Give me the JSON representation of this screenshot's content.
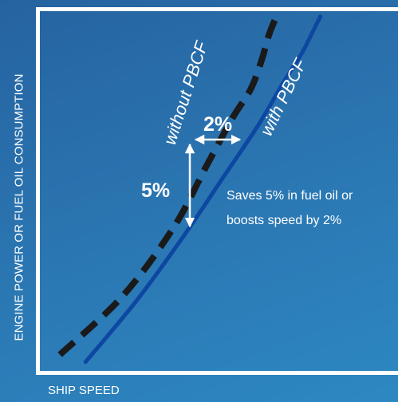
{
  "chart_data": {
    "type": "line",
    "xlabel": "SHIP SPEED",
    "ylabel": "ENGINE POWER OR FUEL OIL CONSUMPTION",
    "series": [
      {
        "name": "without PBCF",
        "style": "dashed",
        "color": "#1a1a1a",
        "x": [
          0.06,
          0.23,
          0.37,
          0.46,
          0.53,
          0.58,
          0.61,
          0.63,
          0.65
        ],
        "y": [
          0.05,
          0.21,
          0.4,
          0.57,
          0.7,
          0.78,
          0.86,
          0.93,
          0.98
        ]
      },
      {
        "name": "with PBCF",
        "style": "solid",
        "color": "#0d47a1",
        "x": [
          0.13,
          0.27,
          0.4,
          0.5,
          0.6,
          0.67,
          0.72,
          0.75,
          0.77
        ],
        "y": [
          0.03,
          0.2,
          0.38,
          0.53,
          0.68,
          0.8,
          0.88,
          0.94,
          0.98
        ]
      }
    ],
    "annotations": [
      {
        "text": "2%",
        "meaning": "speed gain at equal power"
      },
      {
        "text": "5%",
        "meaning": "power saving at equal speed"
      },
      {
        "text": "Saves 5% in fuel oil or boosts speed by 2%"
      }
    ],
    "grid": false
  },
  "labels": {
    "pct_speed": "2%",
    "pct_power": "5%",
    "note_line1": "Saves 5% in fuel oil or",
    "note_line2": "boosts speed by 2%"
  },
  "colors": {
    "background_top": "#2563a0",
    "background_bottom": "#2d88c2",
    "axis": "#ffffff",
    "text": "#ffffff"
  }
}
